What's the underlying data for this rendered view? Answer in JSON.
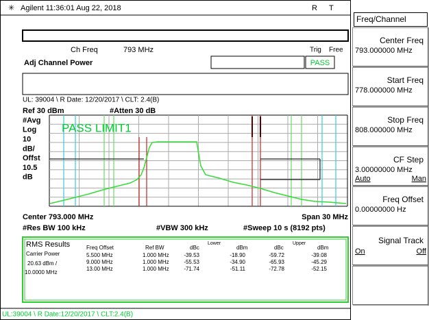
{
  "header": {
    "brand_time": "Agilent 11:36:01 Aug 22, 2018",
    "r": "R",
    "t": "T"
  },
  "measurement": {
    "ch_freq_label": "Ch Freq",
    "ch_freq_value": "793 MHz",
    "trig_label": "Trig",
    "trig_value": "Free",
    "title": "Adj Channel Power",
    "status": "PASS",
    "info": "UL: 39004 \\ R Date: 12/20/2017 \\ CLT: 2.4(B)"
  },
  "display": {
    "ref": "Ref 30 dBm",
    "atten": "#Atten 30 dB",
    "left_labels": [
      "#Avg",
      "Log",
      "10",
      "dB/",
      "Offst",
      "10.5",
      "dB"
    ],
    "limit_text": "PASS LIMIT1",
    "center": "Center 793.000 MHz",
    "span": "Span 30 MHz",
    "res_bw": "#Res BW 100 kHz",
    "vbw": "#VBW 300 kHz",
    "sweep": "#Sweep 10 s (8192 pts)"
  },
  "results": {
    "title": "RMS Results",
    "carrier_label": "Carrier Power",
    "carrier_power": "20.63 dBm  /",
    "carrier_bw": "10.0000 MHz",
    "headers": [
      "Freq Offset",
      "Ref BW",
      "dBc",
      "dBm",
      "dBc",
      "dBm"
    ],
    "lower": "Lower",
    "upper": "Upper",
    "rows": [
      [
        "5.500 MHz",
        "1.000 MHz",
        "-39.53",
        "-18.90",
        "-59.72",
        "-39.08"
      ],
      [
        "9.000 MHz",
        "1.000 MHz",
        "-55.53",
        "-34.90",
        "-65.93",
        "-45.29"
      ],
      [
        "13.00 MHz",
        "1.000 MHz",
        "-71.74",
        "-51.11",
        "-72.78",
        "-52.15"
      ]
    ]
  },
  "status_bar": "UL:39004 \\ R Date:12/20/2017 \\ CLT:2.4(B)",
  "softkeys": {
    "menu": "Freq/Channel",
    "keys": [
      {
        "label": "Center Freq",
        "value": "793.000000 MHz"
      },
      {
        "label": "Start Freq",
        "value": "778.000000 MHz"
      },
      {
        "label": "Stop Freq",
        "value": "808.000000 MHz"
      },
      {
        "label": "CF Step",
        "value": "3.00000000 MHz",
        "options": [
          "Auto",
          "Man"
        ]
      },
      {
        "label": "Freq Offset",
        "value": "0.00000000  Hz"
      },
      {
        "label": "Signal Track",
        "options": [
          "On",
          "Off"
        ]
      }
    ]
  }
}
